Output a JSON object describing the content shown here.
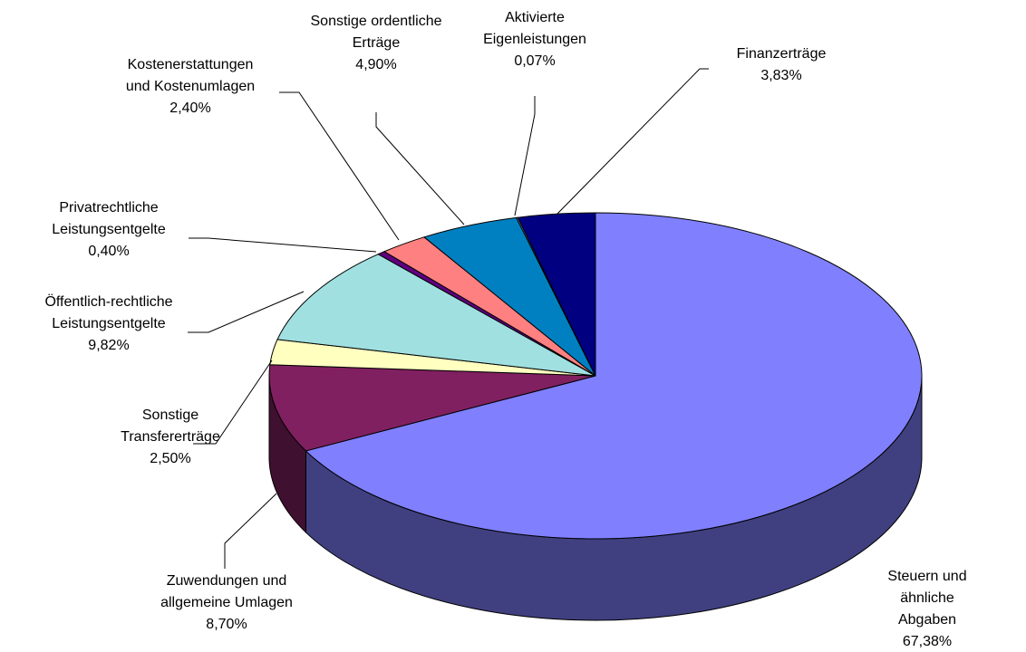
{
  "chart_data": {
    "type": "pie3d",
    "categories": [
      "Steuern und ähnliche\nAbgaben",
      "Zuwendungen und\nallgemeine Umlagen",
      "Sonstige\nTransfererträge",
      "Öffentlich-rechtliche\nLeistungsentgelte",
      "Privatrechtliche\nLeistungsentgelte",
      "Kostenerstattungen\nund Kostenumlagen",
      "Sonstige ordentliche\nErträge",
      "Aktivierte\nEigenleistungen",
      "Finanzerträge"
    ],
    "values": [
      67.38,
      8.7,
      2.5,
      9.82,
      0.4,
      2.4,
      4.9,
      0.07,
      3.83
    ],
    "value_labels": [
      "67,38%",
      "8,70%",
      "2,50%",
      "9,82%",
      "0,40%",
      "2,40%",
      "4,90%",
      "0,07%",
      "3,83%"
    ],
    "colors": [
      "#8080ff",
      "#802060",
      "#ffffc0",
      "#a0e0e0",
      "#600080",
      "#ff8080",
      "#0080c0",
      "#c0c0ff",
      "#000080"
    ]
  }
}
